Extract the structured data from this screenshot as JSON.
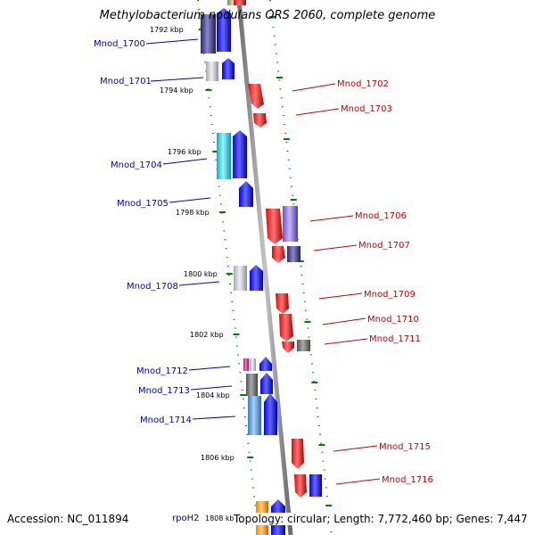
{
  "title": "Methylobacterium nodulans ORS 2060, complete genome",
  "accession_text": "Accession: NC_011894",
  "topology_text": "Topology: circular; Length: 7,772,460 bp; Genes: 7,447",
  "colors": {
    "forward_label": "#0000cc",
    "reverse_label": "#cc0000",
    "backbone": "#888888",
    "ticks": "#008000"
  },
  "kbp_ticks": [
    {
      "label": "1792 kbp",
      "pos": 1792
    },
    {
      "label": "1794 kbp",
      "pos": 1794
    },
    {
      "label": "1796 kbp",
      "pos": 1796
    },
    {
      "label": "1798 kbp",
      "pos": 1798
    },
    {
      "label": "1800 kbp",
      "pos": 1800
    },
    {
      "label": "1802 kbp",
      "pos": 1802
    },
    {
      "label": "1804 kbp",
      "pos": 1804
    },
    {
      "label": "1806 kbp",
      "pos": 1806
    },
    {
      "label": "1808 kbp",
      "pos": 1808
    }
  ],
  "genes_forward": [
    {
      "name": "Mnod_1700"
    },
    {
      "name": "Mnod_1701"
    },
    {
      "name": "Mnod_1704"
    },
    {
      "name": "Mnod_1705"
    },
    {
      "name": "Mnod_1708"
    },
    {
      "name": "Mnod_1712"
    },
    {
      "name": "Mnod_1713"
    },
    {
      "name": "Mnod_1714"
    },
    {
      "name": "rpoH2"
    }
  ],
  "genes_reverse": [
    {
      "name": "Mnod_1702"
    },
    {
      "name": "Mnod_1703"
    },
    {
      "name": "Mnod_1706"
    },
    {
      "name": "Mnod_1707"
    },
    {
      "name": "Mnod_1709"
    },
    {
      "name": "Mnod_1710"
    },
    {
      "name": "Mnod_1711"
    },
    {
      "name": "Mnod_1715"
    },
    {
      "name": "Mnod_1716"
    }
  ]
}
